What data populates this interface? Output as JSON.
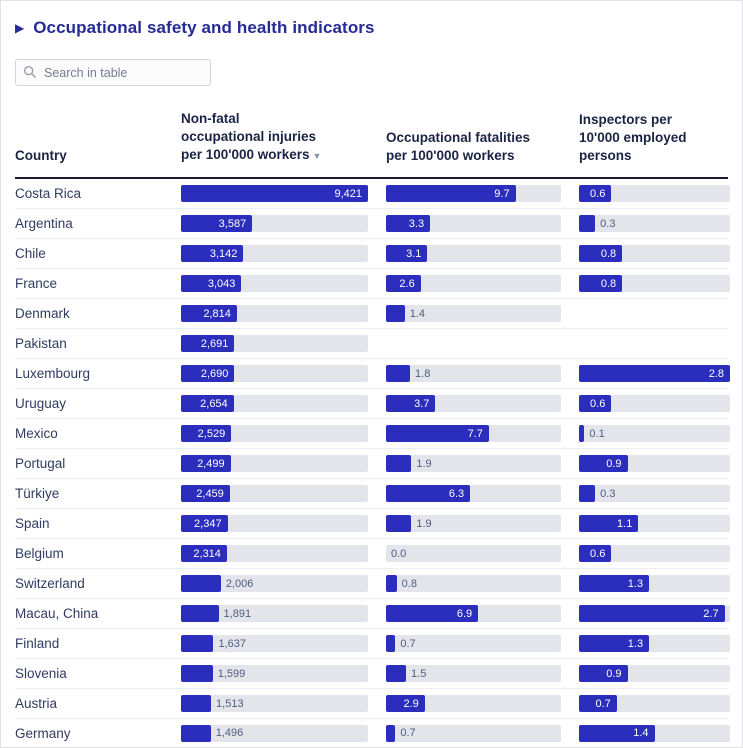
{
  "colors": {
    "accent_bar": "#2b2dbd",
    "track": "#e3e5ea",
    "title": "#262a96",
    "header_text": "#1b2444",
    "country_text": "#303c60",
    "value_outside": "#4e5d82",
    "divider": "#171c33"
  },
  "title": {
    "icon": "▶",
    "text": "Occupational safety and health indicators"
  },
  "search": {
    "placeholder": "Search in table"
  },
  "table": {
    "columns": [
      {
        "label": "Country"
      },
      {
        "label_lines": [
          "Non-fatal",
          "occupational injuries",
          "per 100'000 workers"
        ],
        "sort_indicator": "▼",
        "sorted": "desc",
        "scale_max": 9421
      },
      {
        "label_lines": [
          "Occupational fatalities",
          "per 100'000 workers"
        ],
        "scale_max": 13.1
      },
      {
        "label_lines": [
          "Inspectors per",
          "10'000 employed",
          "persons"
        ],
        "scale_max": 2.8
      }
    ],
    "rows": [
      {
        "country": "Costa Rica",
        "injuries": "9,421",
        "fatalities": "9.7",
        "inspectors": "0.6"
      },
      {
        "country": "Argentina",
        "injuries": "3,587",
        "fatalities": "3.3",
        "inspectors": "0.3"
      },
      {
        "country": "Chile",
        "injuries": "3,142",
        "fatalities": "3.1",
        "inspectors": "0.8"
      },
      {
        "country": "France",
        "injuries": "3,043",
        "fatalities": "2.6",
        "inspectors": "0.8"
      },
      {
        "country": "Denmark",
        "injuries": "2,814",
        "fatalities": "1.4",
        "inspectors": null
      },
      {
        "country": "Pakistan",
        "injuries": "2,691",
        "fatalities": null,
        "inspectors": null
      },
      {
        "country": "Luxembourg",
        "injuries": "2,690",
        "fatalities": "1.8",
        "inspectors": "2.8"
      },
      {
        "country": "Uruguay",
        "injuries": "2,654",
        "fatalities": "3.7",
        "inspectors": "0.6"
      },
      {
        "country": "Mexico",
        "injuries": "2,529",
        "fatalities": "7.7",
        "inspectors": "0.1"
      },
      {
        "country": "Portugal",
        "injuries": "2,499",
        "fatalities": "1.9",
        "inspectors": "0.9"
      },
      {
        "country": "Türkiye",
        "injuries": "2,459",
        "fatalities": "6.3",
        "inspectors": "0.3"
      },
      {
        "country": "Spain",
        "injuries": "2,347",
        "fatalities": "1.9",
        "inspectors": "1.1"
      },
      {
        "country": "Belgium",
        "injuries": "2,314",
        "fatalities": "0.0",
        "inspectors": "0.6"
      },
      {
        "country": "Switzerland",
        "injuries": "2,006",
        "fatalities": "0.8",
        "inspectors": "1.3"
      },
      {
        "country": "Macau, China",
        "injuries": "1,891",
        "fatalities": "6.9",
        "inspectors": "2.7"
      },
      {
        "country": "Finland",
        "injuries": "1,637",
        "fatalities": "0.7",
        "inspectors": "1.3"
      },
      {
        "country": "Slovenia",
        "injuries": "1,599",
        "fatalities": "1.5",
        "inspectors": "0.9"
      },
      {
        "country": "Austria",
        "injuries": "1,513",
        "fatalities": "2.9",
        "inspectors": "0.7"
      },
      {
        "country": "Germany",
        "injuries": "1,496",
        "fatalities": "0.7",
        "inspectors": "1.4"
      }
    ]
  },
  "chart_data": {
    "type": "table",
    "title": "Occupational safety and health indicators",
    "columns": [
      "Country",
      "Non-fatal occupational injuries per 100'000 workers",
      "Occupational fatalities per 100'000 workers",
      "Inspectors per 10'000 employed persons"
    ],
    "sorted_by": "Non-fatal occupational injuries per 100'000 workers, descending",
    "bar_scale_max": {
      "injuries": 9421,
      "fatalities": 13.1,
      "inspectors": 2.8
    },
    "rows": [
      [
        "Costa Rica",
        9421,
        9.7,
        0.6
      ],
      [
        "Argentina",
        3587,
        3.3,
        0.3
      ],
      [
        "Chile",
        3142,
        3.1,
        0.8
      ],
      [
        "France",
        3043,
        2.6,
        0.8
      ],
      [
        "Denmark",
        2814,
        1.4,
        null
      ],
      [
        "Pakistan",
        2691,
        null,
        null
      ],
      [
        "Luxembourg",
        2690,
        1.8,
        2.8
      ],
      [
        "Uruguay",
        2654,
        3.7,
        0.6
      ],
      [
        "Mexico",
        2529,
        7.7,
        0.1
      ],
      [
        "Portugal",
        2499,
        1.9,
        0.9
      ],
      [
        "Türkiye",
        2459,
        6.3,
        0.3
      ],
      [
        "Spain",
        2347,
        1.9,
        1.1
      ],
      [
        "Belgium",
        2314,
        0.0,
        0.6
      ],
      [
        "Switzerland",
        2006,
        0.8,
        1.3
      ],
      [
        "Macau, China",
        1891,
        6.9,
        2.7
      ],
      [
        "Finland",
        1637,
        0.7,
        1.3
      ],
      [
        "Slovenia",
        1599,
        1.5,
        0.9
      ],
      [
        "Austria",
        1513,
        2.9,
        0.7
      ],
      [
        "Germany",
        1496,
        0.7,
        1.4
      ]
    ]
  }
}
